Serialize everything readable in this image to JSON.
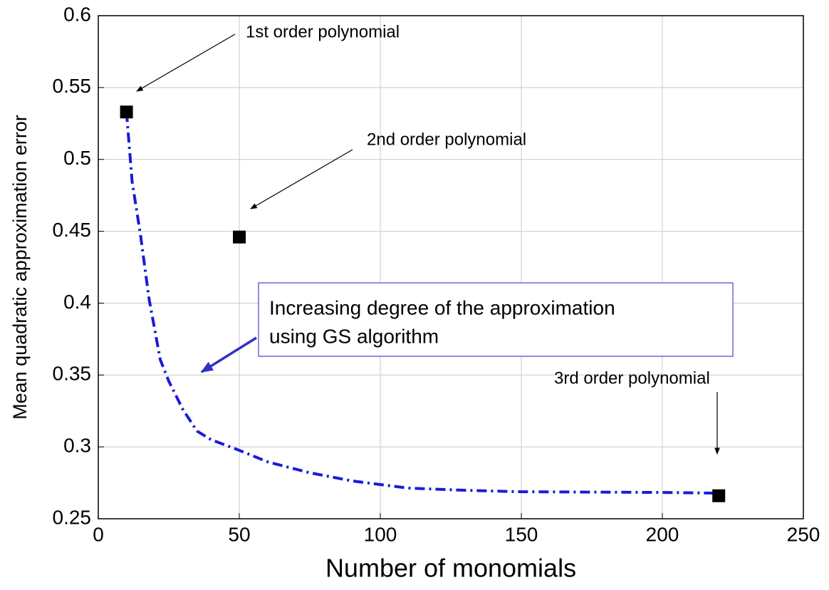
{
  "chart_data": {
    "type": "line",
    "xlabel": "Number of monomials",
    "ylabel": "Mean quadratic approximation error",
    "xlim": [
      0,
      250
    ],
    "xticks": [
      0,
      50,
      100,
      150,
      200,
      250
    ],
    "ylim": [
      0.25,
      0.6
    ],
    "yticks": [
      0.25,
      0.3,
      0.35,
      0.4,
      0.45,
      0.5,
      0.55,
      0.6
    ],
    "grid": true,
    "series": [
      {
        "color": "#1a1adb",
        "line": "dashdot",
        "x": [
          10,
          12,
          15,
          18,
          22,
          25,
          30,
          35,
          40,
          50,
          60,
          75,
          90,
          100,
          110,
          130,
          150,
          200,
          220
        ],
        "values": [
          0.533,
          0.4845,
          0.447,
          0.403,
          0.3605,
          0.3457,
          0.326,
          0.311,
          0.305,
          0.2976,
          0.2896,
          0.282,
          0.2763,
          0.2738,
          0.2713,
          0.2698,
          0.2688,
          0.2683,
          0.2678
        ]
      },
      {
        "color": "#000000",
        "marker": "square",
        "x": [
          10,
          50,
          220
        ],
        "values": [
          0.533,
          0.446,
          0.266
        ]
      }
    ],
    "annotations": [
      "1st order polynomial",
      "2nd order polynomial",
      "3rd order polynomial"
    ],
    "box_text": [
      "Increasing degree of the approximation",
      "using GS algorithm"
    ]
  }
}
